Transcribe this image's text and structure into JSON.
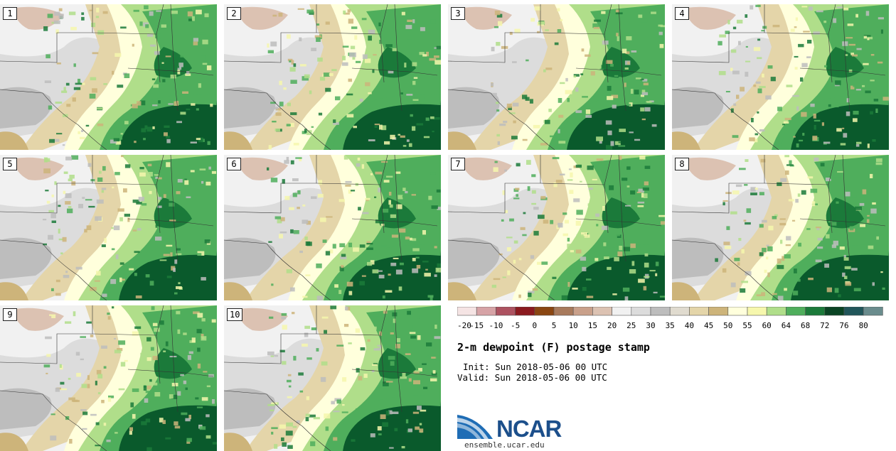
{
  "title": "2-m dewpoint (F) postage stamp",
  "init": "Init: Sun 2018-05-06 00 UTC",
  "valid": "Valid: Sun 2018-05-06 00 UTC",
  "members": [
    "1",
    "2",
    "3",
    "4",
    "5",
    "6",
    "7",
    "8",
    "9",
    "10"
  ],
  "colorbar": {
    "ticks": [
      "-20",
      "-15",
      "-10",
      "-5",
      "0",
      "5",
      "10",
      "15",
      "20",
      "25",
      "30",
      "35",
      "40",
      "45",
      "50",
      "55",
      "60",
      "64",
      "68",
      "72",
      "76",
      "80"
    ],
    "colors": [
      "#f5e4e4",
      "#d6a3a6",
      "#ad5260",
      "#8b1a1f",
      "#8a4612",
      "#a87a5c",
      "#c9a08a",
      "#dcc2b2",
      "#f1f1f1",
      "#dcdcdc",
      "#bdbdbd",
      "#e0dbcf",
      "#e4d5a9",
      "#cdb47a",
      "#ffffdc",
      "#f6f7ad",
      "#b0de8a",
      "#4fae5c",
      "#1b7a3a",
      "#0a4424",
      "#21565a",
      "#6a8c8d"
    ]
  },
  "map_colors": {
    "gray_light": "#f1f1f1",
    "gray_mid": "#dcdcdc",
    "gray_dark": "#bdbdbd",
    "tan_light": "#e4d5a9",
    "tan": "#cdb47a",
    "pink_brown": "#dcc2b2",
    "cream": "#ffffdc",
    "yellow": "#f6f7ad",
    "light_green": "#b0de8a",
    "green": "#4fae5c",
    "dark_green": "#1b7a3a",
    "darkest_green": "#0a5a2c"
  },
  "logo": {
    "text": "NCAR",
    "url": "ensemble.ucar.edu"
  }
}
